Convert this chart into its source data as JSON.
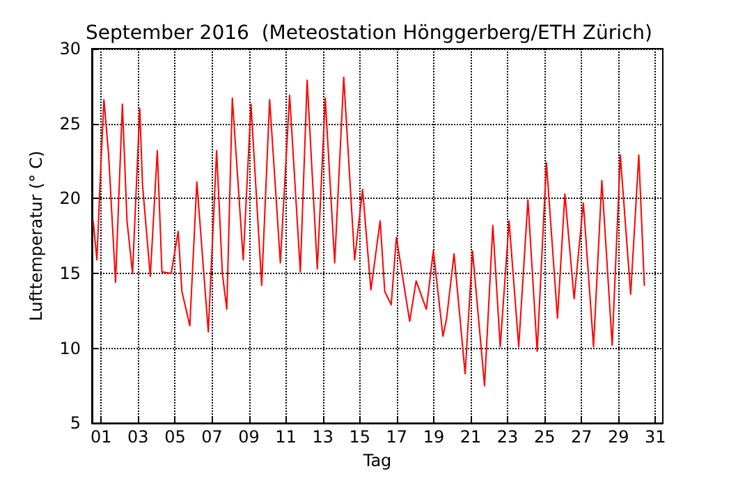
{
  "chart_data": {
    "type": "line",
    "title": "September 2016  (Meteostation Hönggerberg/ETH Zürich)",
    "xlabel": "Tag",
    "ylabel": "Lufttemperatur (° C)",
    "x": [
      0.57,
      0.77,
      0.98,
      1.15,
      1.4,
      1.78,
      2.15,
      2.4,
      2.7,
      3.09,
      3.24,
      3.66,
      4.04,
      4.29,
      4.79,
      5.17,
      5.37,
      5.8,
      6.18,
      6.5,
      6.8,
      7.25,
      7.56,
      7.8,
      8.1,
      8.69,
      9.11,
      9.69,
      10.12,
      10.7,
      11.2,
      11.78,
      12.15,
      12.7,
      13.13,
      13.64,
      14.13,
      14.72,
      15.15,
      15.6,
      16.1,
      16.35,
      16.7,
      16.98,
      17.7,
      18.05,
      18.6,
      18.98,
      19.5,
      19.7,
      20.1,
      20.7,
      21.1,
      21.75,
      22.2,
      22.6,
      23.08,
      23.6,
      24.1,
      24.6,
      25.1,
      25.7,
      26.1,
      26.6,
      27.1,
      27.65,
      28.1,
      28.66,
      29.1,
      29.66,
      30.1,
      30.4
    ],
    "series": [
      {
        "color": "#ff0000",
        "values": [
          18.5,
          15.9,
          22.1,
          26.6,
          23.0,
          14.4,
          26.3,
          18.5,
          15.0,
          26.0,
          20.9,
          14.8,
          23.2,
          15.1,
          15.0,
          17.8,
          13.8,
          11.5,
          21.1,
          15.9,
          11.1,
          23.2,
          15.0,
          12.6,
          26.7,
          15.9,
          26.3,
          14.2,
          26.6,
          15.7,
          26.9,
          15.1,
          27.9,
          15.3,
          26.7,
          15.7,
          28.1,
          15.9,
          20.6,
          13.9,
          18.5,
          13.8,
          12.9,
          17.4,
          11.8,
          14.5,
          12.6,
          16.5,
          10.8,
          12.0,
          16.3,
          8.3,
          16.5,
          7.5,
          18.2,
          10.1,
          18.5,
          10.1,
          19.9,
          9.8,
          22.4,
          12.0,
          20.3,
          13.3,
          19.7,
          10.1,
          21.2,
          10.2,
          22.9,
          13.6,
          22.9,
          14.2
        ]
      }
    ],
    "xlim": [
      0.5,
      31.4
    ],
    "xticks": [
      {
        "value": 1,
        "label": "01"
      },
      {
        "value": 3,
        "label": "03"
      },
      {
        "value": 5,
        "label": "05"
      },
      {
        "value": 7,
        "label": "07"
      },
      {
        "value": 9,
        "label": "09"
      },
      {
        "value": 11,
        "label": "11"
      },
      {
        "value": 13,
        "label": "13"
      },
      {
        "value": 15,
        "label": "15"
      },
      {
        "value": 17,
        "label": "17"
      },
      {
        "value": 19,
        "label": "19"
      },
      {
        "value": 21,
        "label": "21"
      },
      {
        "value": 23,
        "label": "23"
      },
      {
        "value": 25,
        "label": "25"
      },
      {
        "value": 27,
        "label": "27"
      },
      {
        "value": 29,
        "label": "29"
      },
      {
        "value": 31,
        "label": "31"
      }
    ],
    "ylim": [
      5,
      30
    ],
    "yticks": [
      5,
      10,
      15,
      20,
      25,
      30
    ],
    "grid": true,
    "marker": "none",
    "line_style": "solid"
  }
}
